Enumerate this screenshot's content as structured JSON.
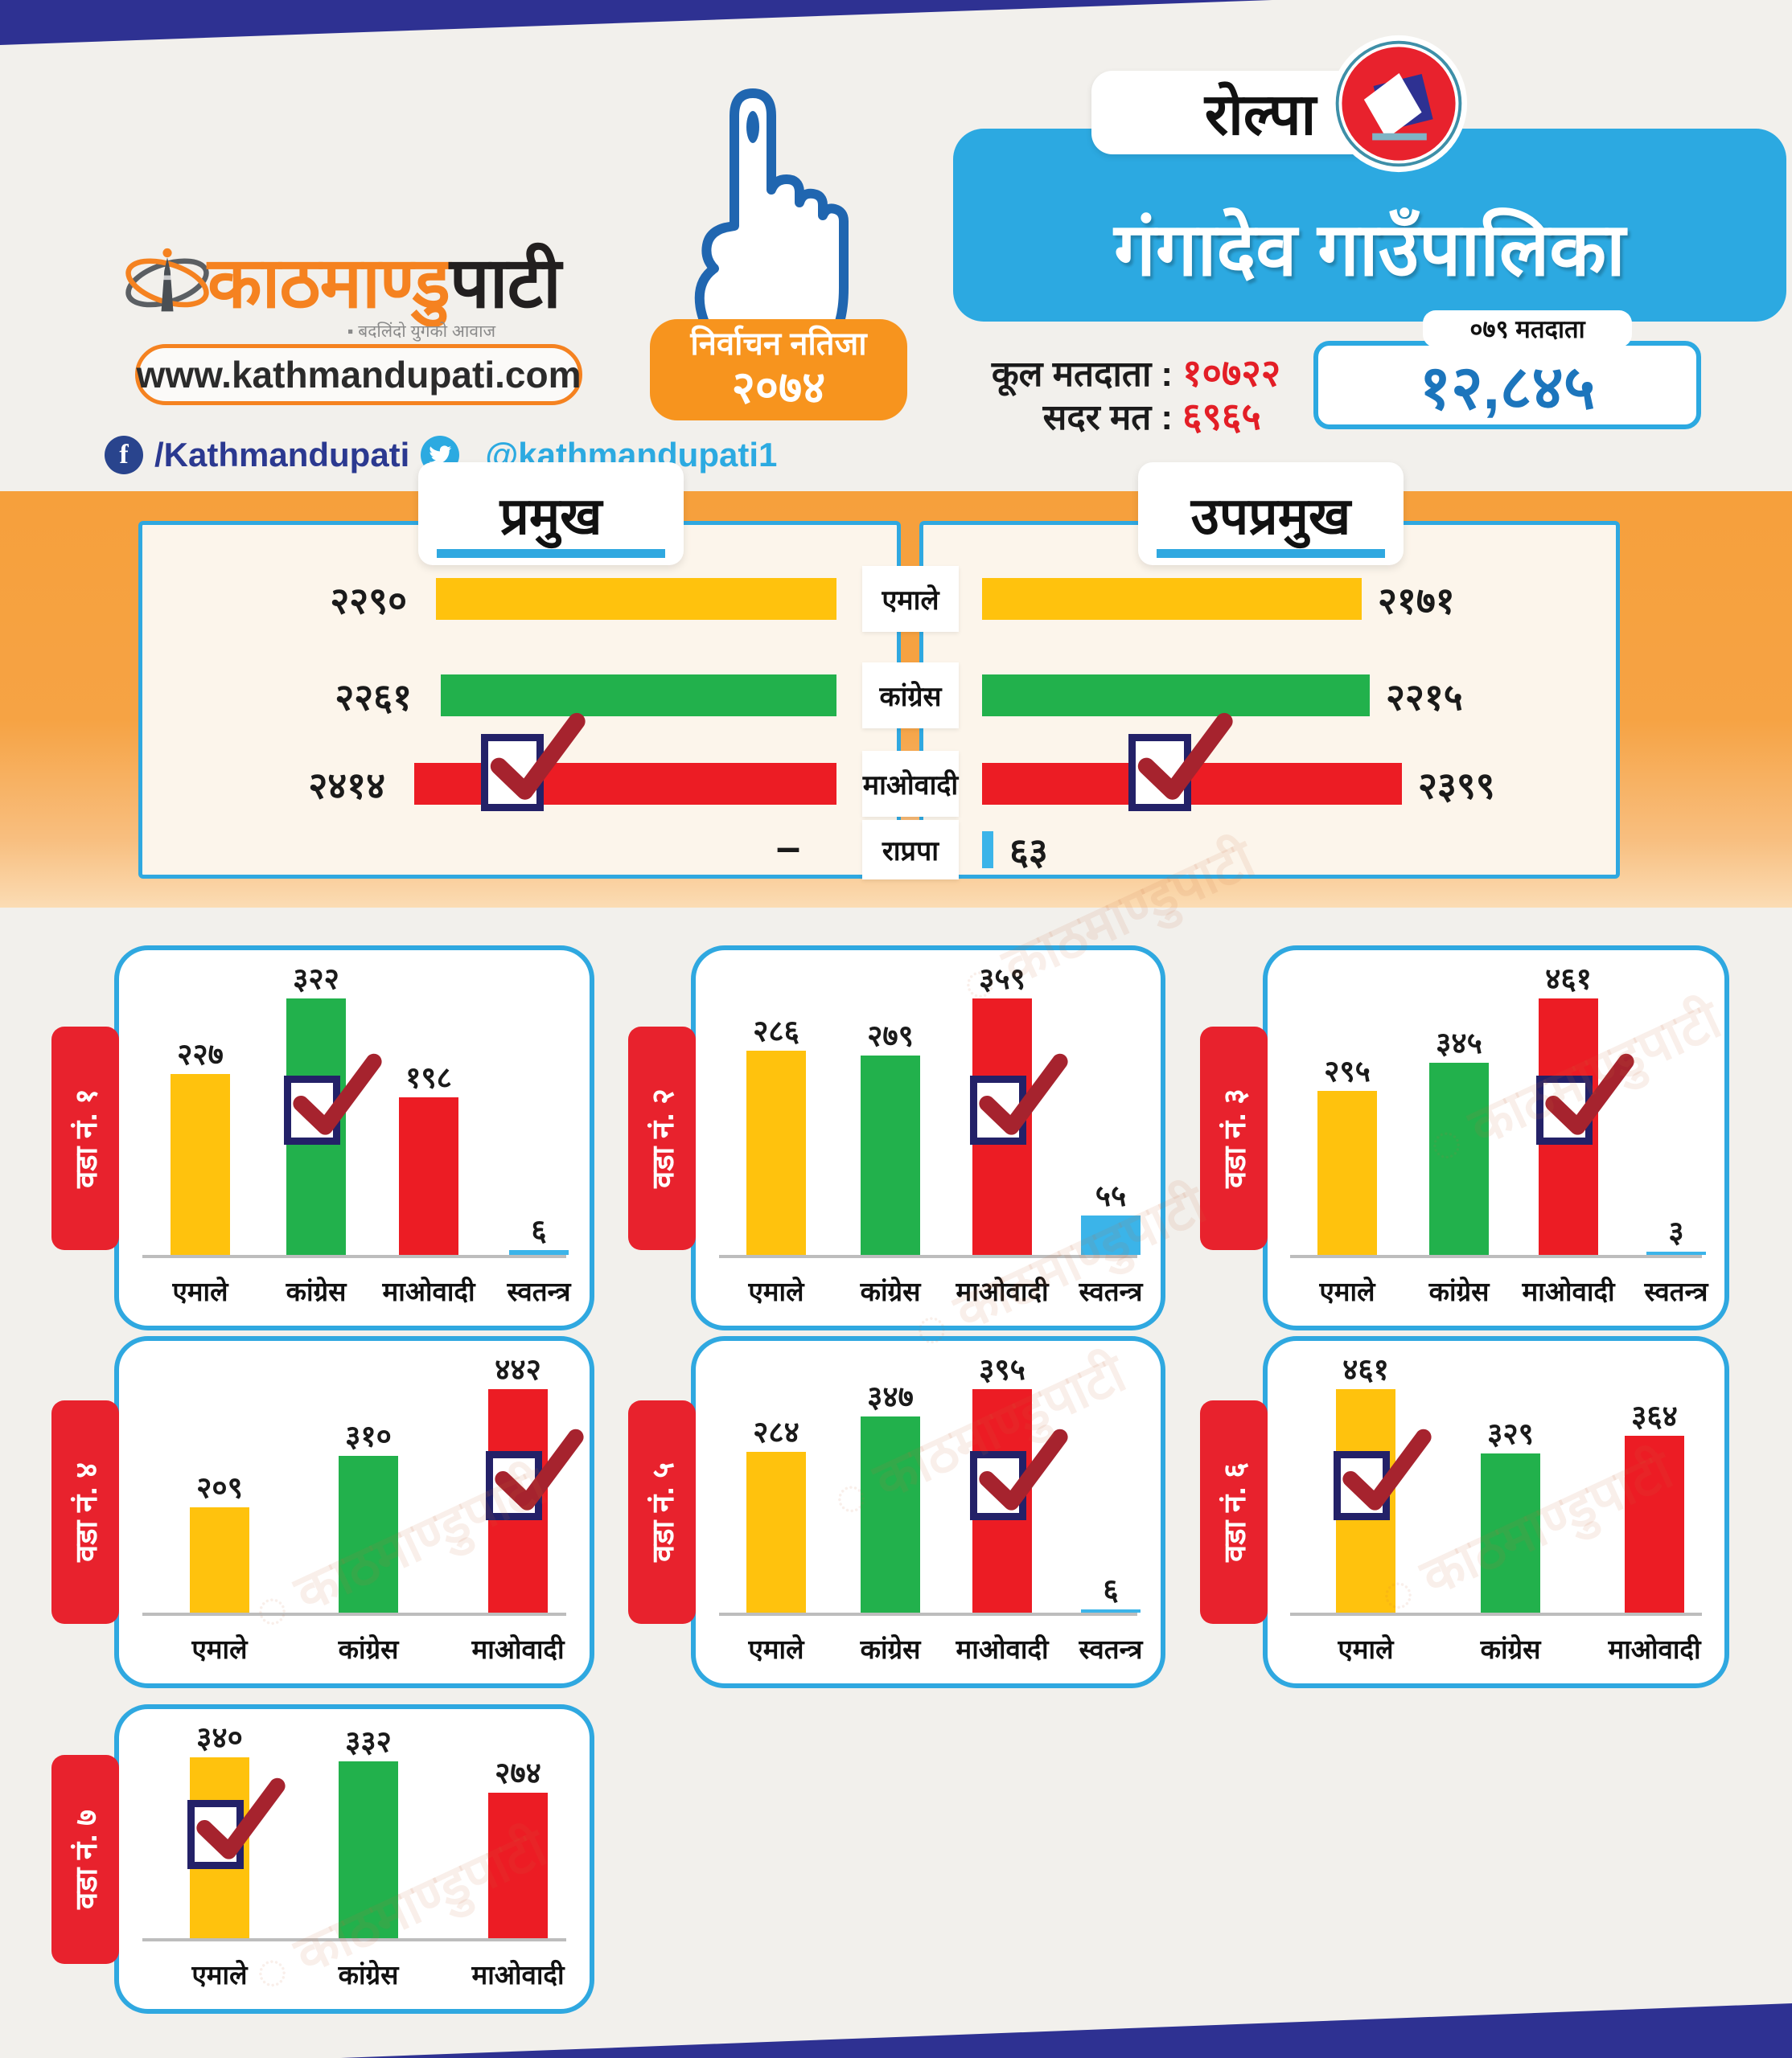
{
  "colors": {
    "uml_yellow": "#FFC20D",
    "congress_green": "#22B14C",
    "maoist_red": "#EC1C24",
    "rpp_blue": "#3BB4E9",
    "band_orange": "#F6A03C",
    "badge_orange": "#F7941E",
    "accent_blue": "#2CA9E1",
    "indigo": "#2E3192",
    "pill_red": "#E8222D",
    "checkbox_navy": "#232168",
    "check_red": "#A6232E"
  },
  "header": {
    "logo_orange": "काठमाण्डु",
    "logo_black": "पाटी",
    "logo_tagline": "बदलिंदो युगको आवाज",
    "website": "www.kathmandupati.com",
    "facebook_handle": "/Kathmandupati",
    "twitter_handle": "@kathmandupati1",
    "result_badge_line1": "निर्वाचन नतिजा",
    "result_badge_line2": "२०७४",
    "district": "रोल्पा",
    "municipality": "गंगादेव गाउँपालिका",
    "total_voters_label": "कूल मतदाता",
    "total_voters_value": "१०७२२",
    "valid_votes_label": "सदर मत",
    "valid_votes_value": "६९६५",
    "voters_079_label": "०७९ मतदाता",
    "voters_079_value": "१२,८४५"
  },
  "party_colors": {
    "एमाले": "#FFC20D",
    "कांग्रेस": "#22B14C",
    "माओवादी": "#EC1C24",
    "स्वतन्त्र": "#3BB4E9",
    "राप्रपा": "#3BB4E9"
  },
  "watermark": "काठमाण्डुपाटी",
  "chart_data": [
    {
      "type": "bar",
      "orientation": "horizontal",
      "title": "प्रमुख",
      "side": "left",
      "categories": [
        "एमाले",
        "कांग्रेस",
        "माओवादी",
        "राप्रपा"
      ],
      "values": [
        2290,
        2261,
        2414,
        null
      ],
      "value_labels": [
        "२२९०",
        "२२६१",
        "२४१४",
        "–"
      ],
      "winner": "माओवादी",
      "winner_index": 2,
      "xlim": [
        0,
        2414
      ]
    },
    {
      "type": "bar",
      "orientation": "horizontal",
      "title": "उपप्रमुख",
      "side": "right",
      "categories": [
        "एमाले",
        "कांग्रेस",
        "माओवादी",
        "राप्रपा"
      ],
      "values": [
        2171,
        2215,
        2399,
        63
      ],
      "value_labels": [
        "२१७१",
        "२२१५",
        "२३९९",
        "६३"
      ],
      "winner": "माओवादी",
      "winner_index": 2,
      "xlim": [
        0,
        2414
      ]
    },
    {
      "type": "bar",
      "title": "वडा नं. १",
      "categories": [
        "एमाले",
        "कांग्रेस",
        "माओवादी",
        "स्वतन्त्र"
      ],
      "values": [
        227,
        322,
        198,
        6
      ],
      "value_labels": [
        "२२७",
        "३२२",
        "१९८",
        "६"
      ],
      "winner": "कांग्रेस",
      "winner_index": 1
    },
    {
      "type": "bar",
      "title": "वडा नं. २",
      "categories": [
        "एमाले",
        "कांग्रेस",
        "माओवादी",
        "स्वतन्त्र"
      ],
      "values": [
        286,
        279,
        359,
        55
      ],
      "value_labels": [
        "२८६",
        "२७९",
        "३५९",
        "५५"
      ],
      "winner": "माओवादी",
      "winner_index": 2
    },
    {
      "type": "bar",
      "title": "वडा नं. ३",
      "categories": [
        "एमाले",
        "कांग्रेस",
        "माओवादी",
        "स्वतन्त्र"
      ],
      "values": [
        295,
        345,
        461,
        3
      ],
      "value_labels": [
        "२९५",
        "३४५",
        "४६१",
        "३"
      ],
      "winner": "माओवादी",
      "winner_index": 2
    },
    {
      "type": "bar",
      "title": "वडा नं. ४",
      "categories": [
        "एमाले",
        "कांग्रेस",
        "माओवादी"
      ],
      "values": [
        209,
        310,
        442
      ],
      "value_labels": [
        "२०९",
        "३१०",
        "४४२"
      ],
      "winner": "माओवादी",
      "winner_index": 2
    },
    {
      "type": "bar",
      "title": "वडा नं. ५",
      "categories": [
        "एमाले",
        "कांग्रेस",
        "माओवादी",
        "स्वतन्त्र"
      ],
      "values": [
        284,
        347,
        395,
        6
      ],
      "value_labels": [
        "२८४",
        "३४७",
        "३९५",
        "६"
      ],
      "winner": "माओवादी",
      "winner_index": 2
    },
    {
      "type": "bar",
      "title": "वडा नं. ६",
      "categories": [
        "एमाले",
        "कांग्रेस",
        "माओवादी"
      ],
      "values": [
        461,
        329,
        364
      ],
      "value_labels": [
        "४६१",
        "३२९",
        "३६४"
      ],
      "winner": "एमाले",
      "winner_index": 0
    },
    {
      "type": "bar",
      "title": "वडा नं. ७",
      "categories": [
        "एमाले",
        "कांग्रेस",
        "माओवादी"
      ],
      "values": [
        340,
        332,
        274
      ],
      "value_labels": [
        "३४०",
        "३३२",
        "२७४"
      ],
      "winner": "एमाले",
      "winner_index": 0
    }
  ]
}
